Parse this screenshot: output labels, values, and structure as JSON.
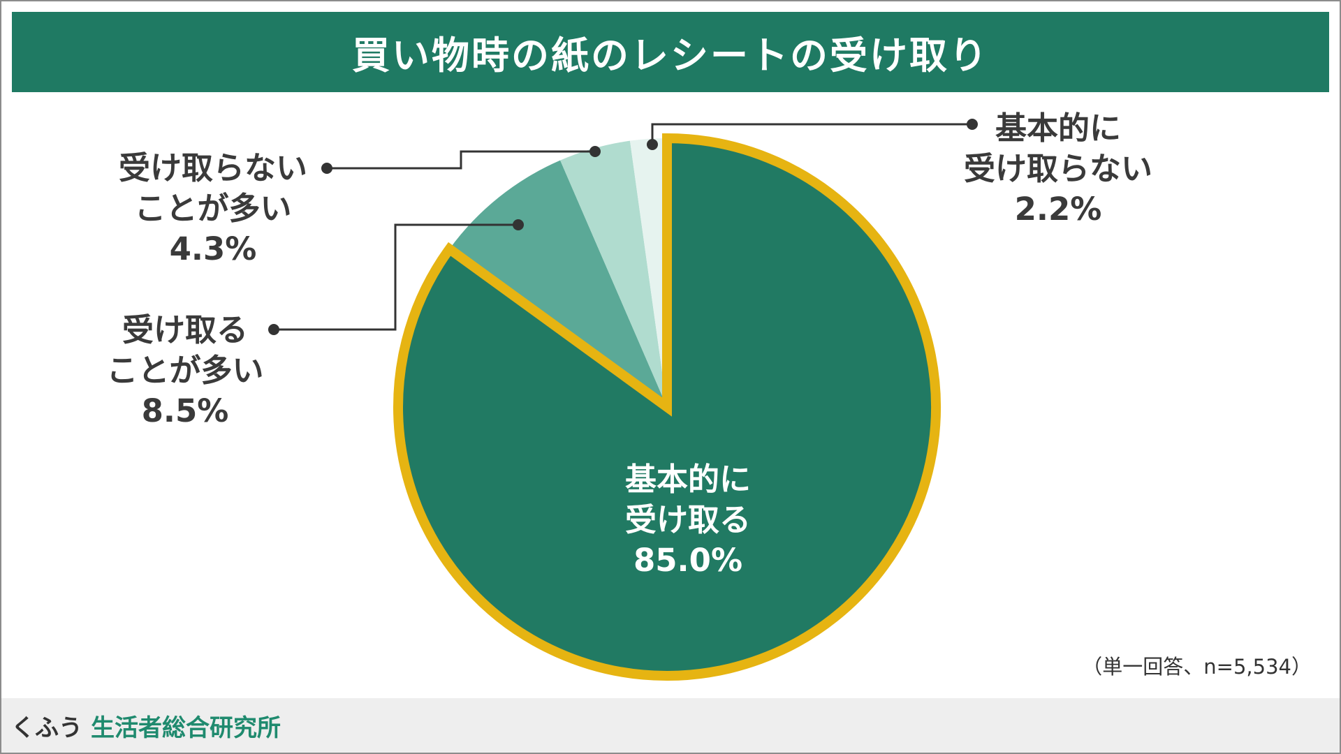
{
  "title": "買い物時の紙のレシートの受け取り",
  "note": "（単一回答、n=5,534）",
  "footer": {
    "logo_text": "くふう",
    "org_text": "生活者総合研究所"
  },
  "colors": {
    "title_bg": "#1f7a63",
    "slice_colors": [
      "#217a63",
      "#5ba997",
      "#b0dccf",
      "#e6f3ef"
    ],
    "highlight_border": "#e6b412",
    "leader_line": "#333333"
  },
  "chart_data": {
    "type": "pie",
    "title": "買い物時の紙のレシートの受け取り",
    "start": "12 o'clock, clockwise",
    "slices": [
      {
        "label_lines": [
          "基本的に",
          "受け取る"
        ],
        "value": 85.0,
        "value_label": "85.0%"
      },
      {
        "label_lines": [
          "受け取る",
          "ことが多い"
        ],
        "value": 8.5,
        "value_label": "8.5%"
      },
      {
        "label_lines": [
          "受け取らない",
          "ことが多い"
        ],
        "value": 4.3,
        "value_label": "4.3%"
      },
      {
        "label_lines": [
          "基本的に",
          "受け取らない"
        ],
        "value": 2.2,
        "value_label": "2.2%"
      }
    ],
    "highlighted_slices": [
      "基本的に受け取る"
    ],
    "legend": "none (direct labels)"
  }
}
